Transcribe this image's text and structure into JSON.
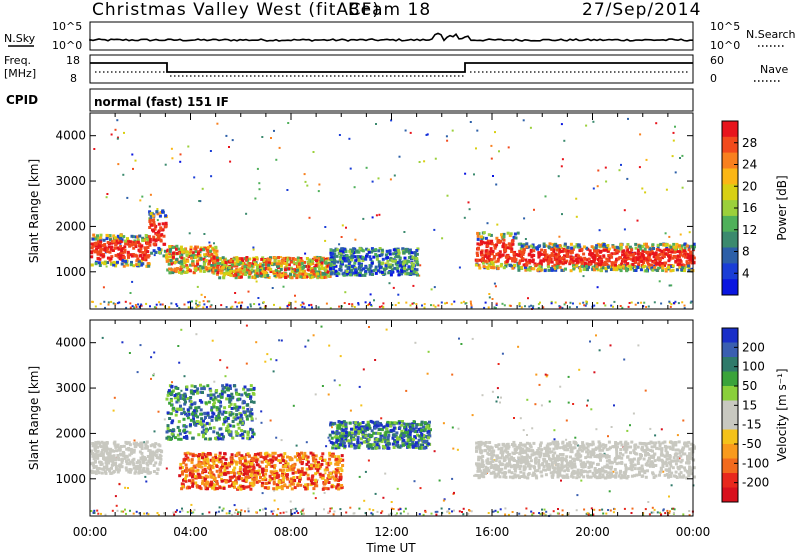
{
  "header": {
    "title": "Christmas Valley West (fitACF)",
    "beam": "Beam 18",
    "date": "27/Sep/2014"
  },
  "top_panels": {
    "nsky_label": "N.Sky",
    "nsky_ticks": [
      "10^5",
      "10^0"
    ],
    "nsearch_label": "N.Search",
    "nsearch_ticks": [
      "10^5",
      "10^0"
    ],
    "freq_label": "Freq.",
    "freq_unit": "[MHz]",
    "freq_ticks": [
      "18",
      "8"
    ],
    "nave_label": "Nave",
    "nave_ticks": [
      "60",
      "0"
    ],
    "cpid_label": "CPID",
    "cpid_value": "normal (fast) 151 IF"
  },
  "colorbars": {
    "power": {
      "label": "Power [dB]",
      "ticks": [
        "28",
        "24",
        "20",
        "16",
        "12",
        "8",
        "4"
      ],
      "colors": [
        "#e8141c",
        "#f24a1c",
        "#f8801e",
        "#fbb615",
        "#d8cf12",
        "#9bd03b",
        "#4fb05a",
        "#3b8a6e",
        "#2c5fa8",
        "#1a3dd6",
        "#0a16e0"
      ]
    },
    "velocity": {
      "label": "Velocity [m s⁻¹]",
      "ticks": [
        "200",
        "100",
        "50",
        "15",
        "-15",
        "-50",
        "-100",
        "-200"
      ],
      "colors": [
        "#1a2fc8",
        "#3a5fb0",
        "#2f7a6a",
        "#3aa33a",
        "#8ad03a",
        "#c8c8c0",
        "#c8c8c0",
        "#f4c21a",
        "#f89a1c",
        "#f26a1c",
        "#e8281c",
        "#d8101c"
      ]
    }
  },
  "chart_data": [
    {
      "type": "heatmap",
      "name": "power",
      "ylabel": "Slant Range [km]",
      "yticks": [
        "4000",
        "3000",
        "2000",
        "1000"
      ],
      "xticks": [
        "00:00",
        "04:00",
        "08:00",
        "12:00",
        "16:00",
        "20:00",
        "00:00"
      ],
      "xlabel": "Time UT",
      "ylim": [
        180,
        4500
      ],
      "xlim_hours": [
        0,
        24
      ],
      "bands": [
        {
          "t0": 0.0,
          "t1": 2.3,
          "r0": 1150,
          "r1": 1850,
          "level": "high"
        },
        {
          "t0": 2.3,
          "t1": 3.0,
          "r0": 1350,
          "r1": 2400,
          "level": "high"
        },
        {
          "t0": 3.0,
          "t1": 5.0,
          "r0": 1000,
          "r1": 1600,
          "level": "mid"
        },
        {
          "t0": 5.0,
          "t1": 9.5,
          "r0": 900,
          "r1": 1350,
          "level": "mid"
        },
        {
          "t0": 9.5,
          "t1": 13.0,
          "r0": 950,
          "r1": 1550,
          "level": "low"
        },
        {
          "t0": 15.3,
          "t1": 17.0,
          "r0": 1100,
          "r1": 1900,
          "level": "high"
        },
        {
          "t0": 17.0,
          "t1": 24.0,
          "r0": 1050,
          "r1": 1650,
          "level": "high"
        }
      ]
    },
    {
      "type": "heatmap",
      "name": "velocity",
      "ylabel": "Slant Range [km]",
      "yticks": [
        "4000",
        "3000",
        "2000",
        "1000"
      ],
      "xticks": [
        "00:00",
        "04:00",
        "08:00",
        "12:00",
        "16:00",
        "20:00",
        "00:00"
      ],
      "xlabel": "Time UT",
      "ylim": [
        180,
        4500
      ],
      "xlim_hours": [
        0,
        24
      ],
      "bands": [
        {
          "t0": 0.0,
          "t1": 2.8,
          "r0": 1150,
          "r1": 1850,
          "level": "zero"
        },
        {
          "t0": 3.0,
          "t1": 6.5,
          "r0": 1900,
          "r1": 3100,
          "level": "positive"
        },
        {
          "t0": 3.5,
          "t1": 10.0,
          "r0": 800,
          "r1": 1600,
          "level": "negative"
        },
        {
          "t0": 9.5,
          "t1": 13.5,
          "r0": 1700,
          "r1": 2300,
          "level": "positive"
        },
        {
          "t0": 15.3,
          "t1": 24.0,
          "r0": 1050,
          "r1": 1850,
          "level": "zero"
        }
      ]
    }
  ]
}
